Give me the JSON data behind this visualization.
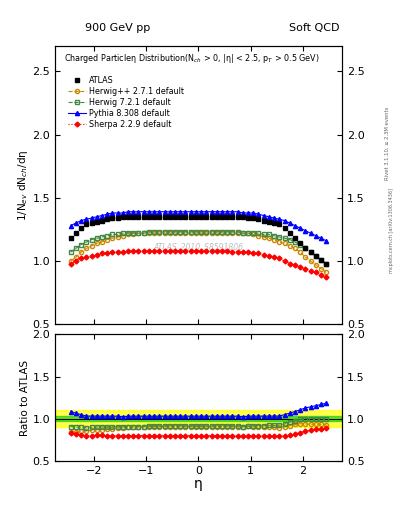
{
  "title_left": "900 GeV pp",
  "title_right": "Soft QCD",
  "xlabel": "η",
  "ylabel_main": "1/N$_{ev}$ dN$_{ch}$/dη",
  "ylabel_ratio": "Ratio to ATLAS",
  "watermark": "ATLAS_2010_S8591806",
  "right_label": "Rivet 3.1.10, ≥ 2.3M events",
  "right_label2": "mcplots.cern.ch [arXiv:1306.3436]",
  "xlim": [
    -2.75,
    2.75
  ],
  "ylim_main": [
    0.5,
    2.7
  ],
  "ylim_ratio": [
    0.5,
    2.0
  ],
  "yticks_main": [
    0.5,
    1.0,
    1.5,
    2.0,
    2.5
  ],
  "yticks_ratio": [
    0.5,
    1.0,
    1.5,
    2.0
  ],
  "xticks": [
    -2,
    -1,
    0,
    1,
    2
  ],
  "eta_points": [
    -2.45,
    -2.35,
    -2.25,
    -2.15,
    -2.05,
    -1.95,
    -1.85,
    -1.75,
    -1.65,
    -1.55,
    -1.45,
    -1.35,
    -1.25,
    -1.15,
    -1.05,
    -0.95,
    -0.85,
    -0.75,
    -0.65,
    -0.55,
    -0.45,
    -0.35,
    -0.25,
    -0.15,
    -0.05,
    0.05,
    0.15,
    0.25,
    0.35,
    0.45,
    0.55,
    0.65,
    0.75,
    0.85,
    0.95,
    1.05,
    1.15,
    1.25,
    1.35,
    1.45,
    1.55,
    1.65,
    1.75,
    1.85,
    1.95,
    2.05,
    2.15,
    2.25,
    2.35,
    2.45
  ],
  "atlas_values": [
    1.18,
    1.22,
    1.26,
    1.29,
    1.3,
    1.31,
    1.32,
    1.33,
    1.34,
    1.34,
    1.35,
    1.35,
    1.35,
    1.35,
    1.35,
    1.35,
    1.35,
    1.35,
    1.35,
    1.35,
    1.35,
    1.35,
    1.35,
    1.35,
    1.35,
    1.35,
    1.35,
    1.35,
    1.35,
    1.35,
    1.35,
    1.35,
    1.35,
    1.35,
    1.34,
    1.34,
    1.33,
    1.32,
    1.31,
    1.3,
    1.29,
    1.26,
    1.22,
    1.18,
    1.14,
    1.1,
    1.07,
    1.04,
    1.01,
    0.98
  ],
  "herwig_pp_values": [
    1.0,
    1.03,
    1.07,
    1.1,
    1.12,
    1.14,
    1.15,
    1.17,
    1.18,
    1.19,
    1.2,
    1.21,
    1.21,
    1.22,
    1.22,
    1.22,
    1.22,
    1.22,
    1.22,
    1.22,
    1.22,
    1.22,
    1.22,
    1.22,
    1.22,
    1.22,
    1.22,
    1.22,
    1.22,
    1.22,
    1.22,
    1.22,
    1.22,
    1.22,
    1.22,
    1.21,
    1.2,
    1.19,
    1.18,
    1.17,
    1.15,
    1.14,
    1.12,
    1.1,
    1.07,
    1.03,
    1.0,
    0.97,
    0.94,
    0.91
  ],
  "herwig7_values": [
    1.07,
    1.1,
    1.13,
    1.15,
    1.17,
    1.18,
    1.19,
    1.2,
    1.21,
    1.21,
    1.22,
    1.22,
    1.22,
    1.22,
    1.22,
    1.23,
    1.23,
    1.23,
    1.23,
    1.23,
    1.23,
    1.23,
    1.23,
    1.23,
    1.23,
    1.23,
    1.23,
    1.23,
    1.23,
    1.23,
    1.23,
    1.23,
    1.23,
    1.22,
    1.22,
    1.22,
    1.22,
    1.21,
    1.21,
    1.2,
    1.19,
    1.18,
    1.17,
    1.15,
    1.13,
    1.1,
    1.07,
    1.04,
    1.01,
    0.98
  ],
  "pythia_values": [
    1.28,
    1.3,
    1.32,
    1.33,
    1.34,
    1.35,
    1.36,
    1.37,
    1.38,
    1.38,
    1.38,
    1.39,
    1.39,
    1.39,
    1.39,
    1.39,
    1.39,
    1.39,
    1.39,
    1.39,
    1.39,
    1.39,
    1.39,
    1.39,
    1.39,
    1.39,
    1.39,
    1.39,
    1.39,
    1.39,
    1.39,
    1.39,
    1.39,
    1.38,
    1.38,
    1.38,
    1.37,
    1.36,
    1.35,
    1.34,
    1.33,
    1.32,
    1.3,
    1.28,
    1.26,
    1.24,
    1.22,
    1.2,
    1.18,
    1.16
  ],
  "sherpa_values": [
    0.98,
    1.0,
    1.02,
    1.03,
    1.04,
    1.05,
    1.06,
    1.06,
    1.07,
    1.07,
    1.07,
    1.08,
    1.08,
    1.08,
    1.08,
    1.08,
    1.08,
    1.08,
    1.08,
    1.08,
    1.08,
    1.08,
    1.08,
    1.08,
    1.08,
    1.08,
    1.08,
    1.08,
    1.08,
    1.08,
    1.08,
    1.07,
    1.07,
    1.07,
    1.07,
    1.06,
    1.06,
    1.05,
    1.04,
    1.03,
    1.02,
    1.0,
    0.98,
    0.97,
    0.95,
    0.94,
    0.92,
    0.91,
    0.89,
    0.87
  ],
  "atlas_color": "#000000",
  "herwig_pp_color": "#cc8800",
  "herwig7_color": "#448844",
  "pythia_color": "#0000ff",
  "sherpa_color": "#ff0000",
  "background_color": "#ffffff"
}
